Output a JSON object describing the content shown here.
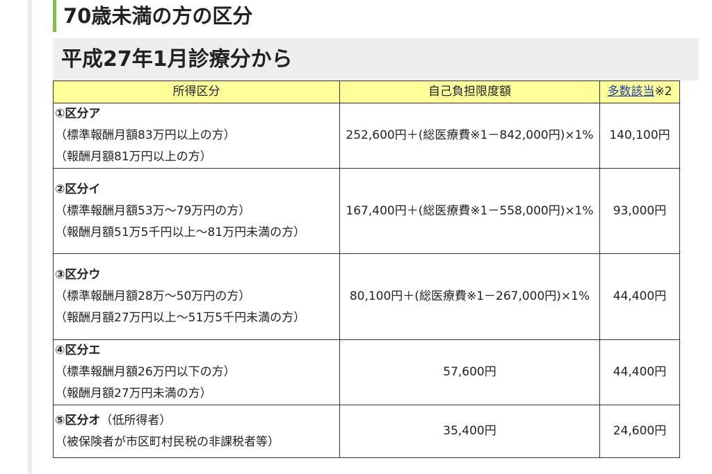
{
  "heading": "70歳未満の方の区分",
  "subheading": "平成27年1月診療分から",
  "table": {
    "header": {
      "income": "所得区分",
      "limit": "自己負担限度額",
      "multiple_link": "多数該当",
      "multiple_note": "※2"
    },
    "rows": [
      {
        "category": "①区分ア",
        "details": [
          "（標準報酬月額83万円以上の方）",
          "（報酬月額81万円以上の方）"
        ],
        "limit": "252,600円＋(総医療費※1－842,000円)×1%",
        "multiple": "140,100円"
      },
      {
        "category": "②区分イ",
        "details": [
          "（標準報酬月額53万～79万円の方）",
          "（報酬月額51万5千円以上～81万円未満の方）"
        ],
        "limit": "167,400円＋(総医療費※1－558,000円)×1%",
        "multiple": "93,000円"
      },
      {
        "category": "③区分ウ",
        "details": [
          "（標準報酬月額28万～50万円の方）",
          "（報酬月額27万円以上～51万5千円未満の方）"
        ],
        "limit": "80,100円＋(総医療費※1－267,000円)×1%",
        "multiple": "44,400円"
      },
      {
        "category": "④区分エ",
        "details": [
          "（標準報酬月額26万円以下の方）",
          "（報酬月額27万円未満の方）"
        ],
        "limit": "57,600円",
        "multiple": "44,400円"
      },
      {
        "category": "⑤区分オ",
        "category_note": "（低所得者）",
        "details": [
          "（被保険者が市区町村民税の非課税者等）"
        ],
        "limit": "35,400円",
        "multiple": "24,600円"
      }
    ]
  }
}
